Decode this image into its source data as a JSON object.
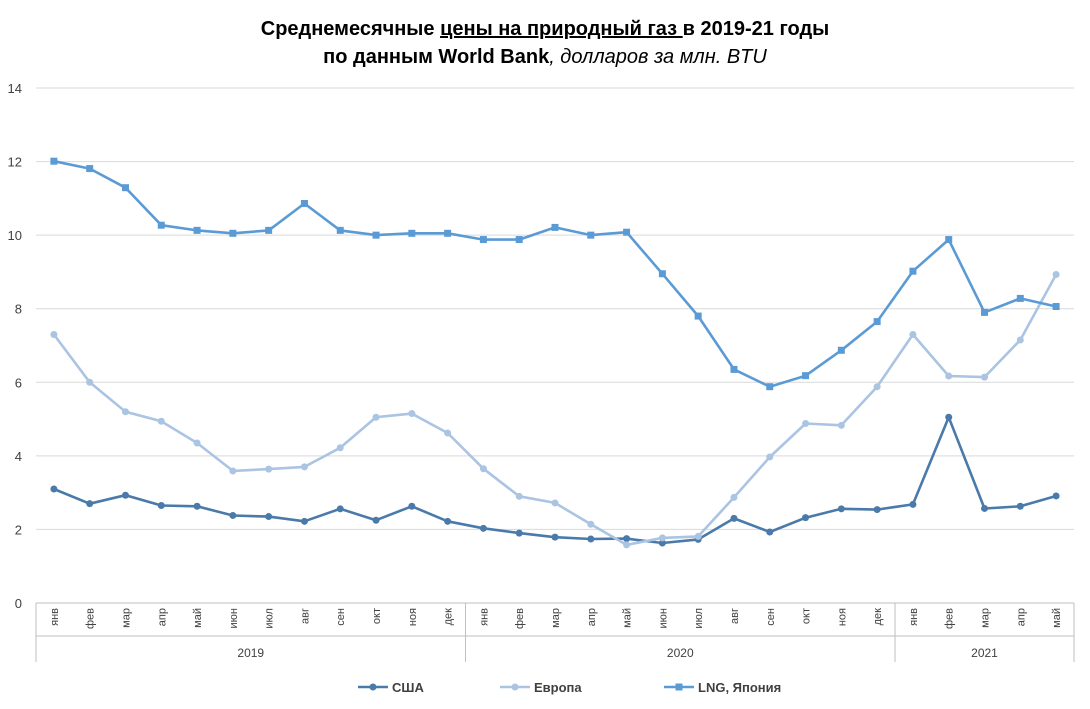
{
  "chart_data": {
    "type": "line",
    "title": {
      "line1_a": "Среднемесячные ",
      "line1_b": "цены на природный газ ",
      "line1_c": "в 2019-21 годы",
      "line2_a": "по данным World Bank",
      "line2_b": ", долларов за млн. BTU"
    },
    "ylim": [
      0,
      14
    ],
    "yticks": [
      "0",
      "2",
      "4",
      "6",
      "8",
      "10",
      "12",
      "14"
    ],
    "categories": [
      "янв",
      "фев",
      "мар",
      "апр",
      "май",
      "июн",
      "июл",
      "авг",
      "сен",
      "окт",
      "ноя",
      "дек",
      "янв",
      "фев",
      "мар",
      "апр",
      "май",
      "июн",
      "июл",
      "авг",
      "сен",
      "окт",
      "ноя",
      "дек",
      "янв",
      "фев",
      "мар",
      "апр",
      "май"
    ],
    "years": [
      {
        "label": "2019",
        "start": 0,
        "count": 12
      },
      {
        "label": "2020",
        "start": 12,
        "count": 12
      },
      {
        "label": "2021",
        "start": 24,
        "count": 5
      }
    ],
    "grid": true,
    "legend_position": "bottom",
    "series": [
      {
        "name": "США",
        "color": "#4a7aaa",
        "marker": "circle",
        "values": [
          3.1,
          2.7,
          2.93,
          2.65,
          2.63,
          2.38,
          2.35,
          2.22,
          2.56,
          2.25,
          2.63,
          2.22,
          2.03,
          1.9,
          1.79,
          1.74,
          1.75,
          1.63,
          1.73,
          2.3,
          1.93,
          2.32,
          2.56,
          2.54,
          2.68,
          5.05,
          2.57,
          2.63,
          2.91
        ]
      },
      {
        "name": "Европа",
        "color": "#aac4e2",
        "marker": "circle",
        "values": [
          7.3,
          6.0,
          5.2,
          4.94,
          4.35,
          3.59,
          3.64,
          3.7,
          4.22,
          5.05,
          5.15,
          4.62,
          3.65,
          2.9,
          2.72,
          2.14,
          1.58,
          1.77,
          1.81,
          2.87,
          3.97,
          4.88,
          4.83,
          5.88,
          7.3,
          6.17,
          6.14,
          7.15,
          8.93
        ]
      },
      {
        "name": "LNG, Япония",
        "color": "#5b9bd5",
        "marker": "square",
        "values": [
          12.01,
          11.81,
          11.29,
          10.27,
          10.13,
          10.05,
          10.13,
          10.86,
          10.13,
          10.0,
          10.05,
          10.05,
          9.88,
          9.88,
          10.21,
          10.0,
          10.08,
          8.95,
          7.8,
          6.35,
          5.88,
          6.18,
          6.87,
          7.65,
          9.02,
          9.88,
          7.9,
          8.28,
          8.06
        ]
      }
    ]
  }
}
